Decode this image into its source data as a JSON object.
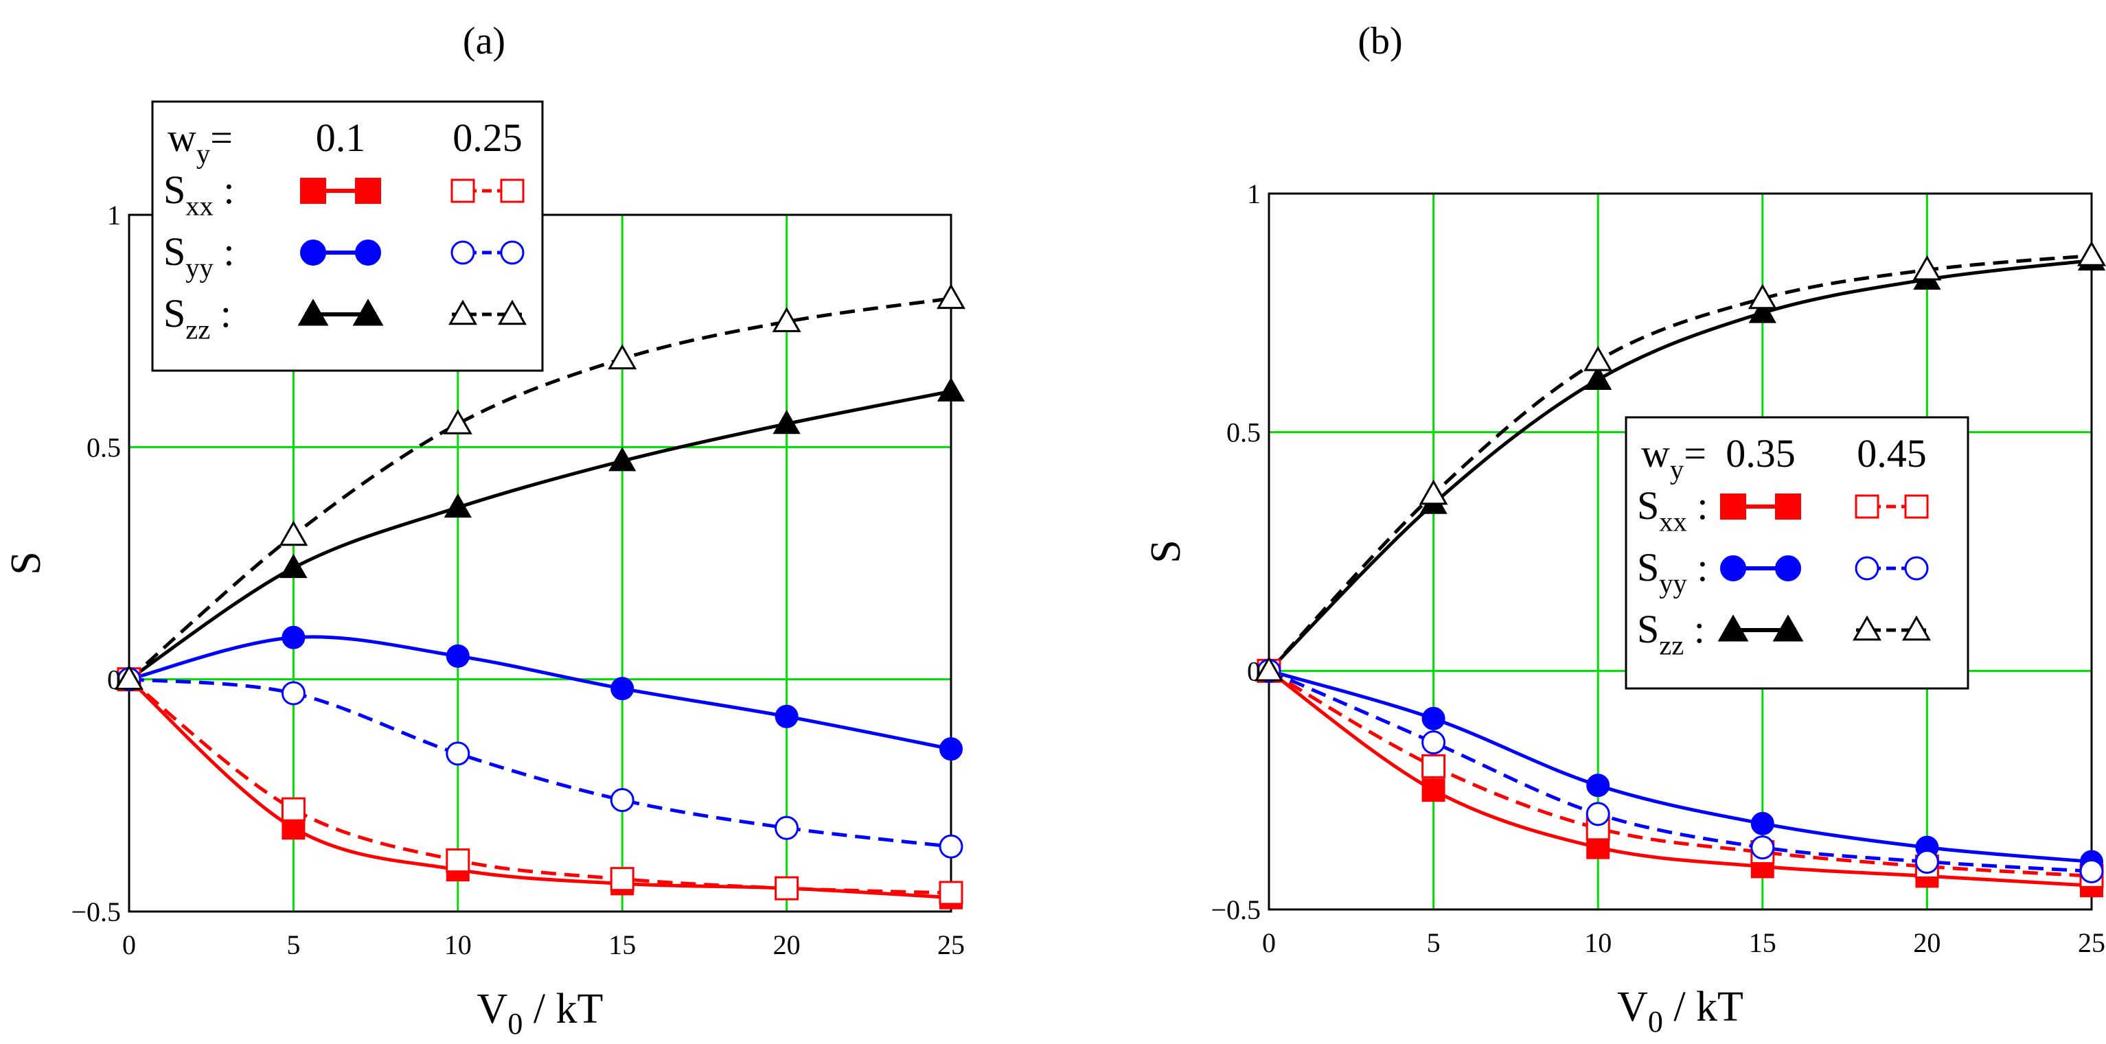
{
  "colors": {
    "grid": "#00dd00",
    "frame": "#000000",
    "sxx": "#ff0000",
    "syy": "#0000ff",
    "szz": "#000000"
  },
  "chart_data": [
    {
      "panel": "(a)",
      "type": "line",
      "xlabel": "V0 / kT",
      "ylabel": "S",
      "xlim": [
        0,
        25
      ],
      "ylim": [
        -0.5,
        1
      ],
      "xticks": [
        0,
        5,
        10,
        15,
        20,
        25
      ],
      "xtick_labels": [
        "0",
        "5",
        "10",
        "15",
        "20",
        "25"
      ],
      "yticks": [
        -0.5,
        0,
        0.5,
        1
      ],
      "ytick_labels": [
        "−0.5",
        "0",
        "0.5",
        "1"
      ],
      "grid": true,
      "legend": {
        "placement": "top-left",
        "header": "w",
        "header_sub": "y",
        "header_eq": "=",
        "columns": [
          "0.1",
          "0.25"
        ],
        "rows": [
          {
            "label": "S",
            "sub": "xx",
            "colon": ":"
          },
          {
            "label": "S",
            "sub": "yy",
            "colon": ":"
          },
          {
            "label": "S",
            "sub": "zz",
            "colon": ":"
          }
        ]
      },
      "x": [
        0,
        5,
        10,
        15,
        20,
        25
      ],
      "series": [
        {
          "name": "Sxx w=0.1",
          "component": "xx",
          "style": "solid",
          "marker": "square-filled",
          "values": [
            0,
            -0.32,
            -0.41,
            -0.44,
            -0.45,
            -0.47
          ]
        },
        {
          "name": "Sxx w=0.25",
          "component": "xx",
          "style": "dashed",
          "marker": "square-open",
          "values": [
            0,
            -0.28,
            -0.39,
            -0.43,
            -0.45,
            -0.46
          ]
        },
        {
          "name": "Syy w=0.1",
          "component": "yy",
          "style": "solid",
          "marker": "circle-filled",
          "values": [
            0,
            0.09,
            0.05,
            -0.02,
            -0.08,
            -0.15
          ]
        },
        {
          "name": "Syy w=0.25",
          "component": "yy",
          "style": "dashed",
          "marker": "circle-open",
          "values": [
            0,
            -0.03,
            -0.16,
            -0.26,
            -0.32,
            -0.36
          ]
        },
        {
          "name": "Szz w=0.1",
          "component": "zz",
          "style": "solid",
          "marker": "triangle-filled",
          "values": [
            0,
            0.24,
            0.37,
            0.47,
            0.55,
            0.62
          ]
        },
        {
          "name": "Szz w=0.25",
          "component": "zz",
          "style": "dashed",
          "marker": "triangle-open",
          "values": [
            0,
            0.31,
            0.55,
            0.69,
            0.77,
            0.82
          ]
        }
      ]
    },
    {
      "panel": "(b)",
      "type": "line",
      "xlabel": "V0 / kT",
      "ylabel": "S",
      "xlim": [
        0,
        25
      ],
      "ylim": [
        -0.5,
        1
      ],
      "xticks": [
        0,
        5,
        10,
        15,
        20,
        25
      ],
      "xtick_labels": [
        "0",
        "5",
        "10",
        "15",
        "20",
        "25"
      ],
      "yticks": [
        -0.5,
        0,
        0.5,
        1
      ],
      "ytick_labels": [
        "−0.5",
        "0",
        "0.5",
        "1"
      ],
      "grid": true,
      "legend": {
        "placement": "center-right",
        "header": "w",
        "header_sub": "y",
        "header_eq": "=",
        "columns": [
          "0.35",
          "0.45"
        ],
        "rows": [
          {
            "label": "S",
            "sub": "xx",
            "colon": ":"
          },
          {
            "label": "S",
            "sub": "yy",
            "colon": ":"
          },
          {
            "label": "S",
            "sub": "zz",
            "colon": ":"
          }
        ]
      },
      "x": [
        0,
        5,
        10,
        15,
        20,
        25
      ],
      "series": [
        {
          "name": "Sxx w=0.35",
          "component": "xx",
          "style": "solid",
          "marker": "square-filled",
          "values": [
            0,
            -0.25,
            -0.37,
            -0.41,
            -0.43,
            -0.45
          ]
        },
        {
          "name": "Sxx w=0.45",
          "component": "xx",
          "style": "dashed",
          "marker": "square-open",
          "values": [
            0,
            -0.2,
            -0.33,
            -0.38,
            -0.41,
            -0.43
          ]
        },
        {
          "name": "Syy w=0.35",
          "component": "yy",
          "style": "solid",
          "marker": "circle-filled",
          "values": [
            0,
            -0.1,
            -0.24,
            -0.32,
            -0.37,
            -0.4
          ]
        },
        {
          "name": "Syy w=0.45",
          "component": "yy",
          "style": "dashed",
          "marker": "circle-open",
          "values": [
            0,
            -0.15,
            -0.3,
            -0.37,
            -0.4,
            -0.42
          ]
        },
        {
          "name": "Szz w=0.35",
          "component": "zz",
          "style": "solid",
          "marker": "triangle-filled",
          "values": [
            0,
            0.35,
            0.61,
            0.75,
            0.82,
            0.86
          ]
        },
        {
          "name": "Szz w=0.45",
          "component": "zz",
          "style": "dashed",
          "marker": "triangle-open",
          "values": [
            0,
            0.37,
            0.65,
            0.78,
            0.84,
            0.87
          ]
        }
      ]
    }
  ]
}
